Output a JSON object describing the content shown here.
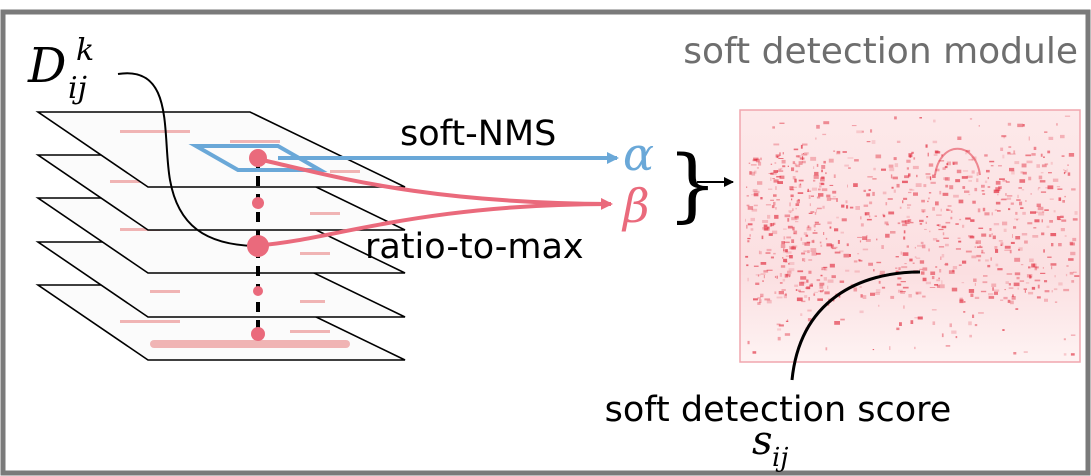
{
  "module_title": "soft detection module",
  "input": {
    "symbol": "D",
    "superscript": "k",
    "subscript": "ij"
  },
  "operations": {
    "soft_nms_label": "soft-NMS",
    "ratio_to_max_label": "ratio-to-max",
    "alpha_symbol": "α",
    "beta_symbol": "β",
    "brace_symbol": "}"
  },
  "output": {
    "label": "soft detection score",
    "symbol": "s",
    "subscript": "ij"
  },
  "colors": {
    "soft_nms": "#6aa8d8",
    "ratio_to_max": "#ea6a7c",
    "heatmap": "#e0293b",
    "frame": "#7a7a7a"
  }
}
